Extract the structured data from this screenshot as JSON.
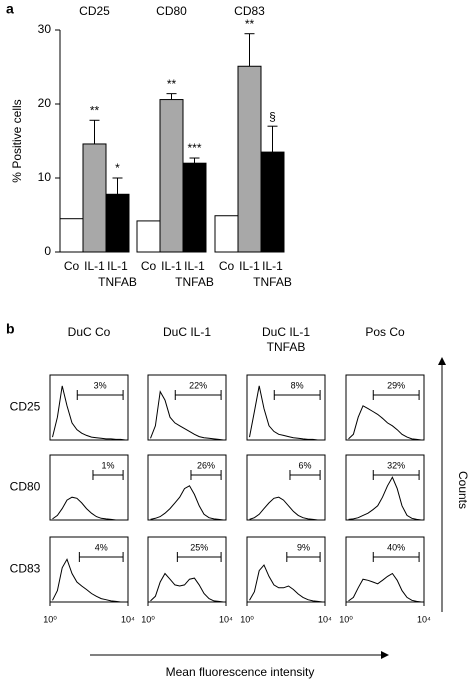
{
  "chart_data": [
    {
      "type": "grouped-bar",
      "panel": "a",
      "ylabel": "% Positive cells",
      "ylim": [
        0,
        30
      ],
      "yticks": [
        0,
        10,
        20,
        30
      ],
      "categories": [
        "Co",
        "IL-1",
        [
          "IL-1",
          "TNFAB"
        ]
      ],
      "colors": [
        "#ffffff",
        "#a8a8a8",
        "#000000"
      ],
      "groups": [
        {
          "name": "CD25",
          "values": [
            4.5,
            14.6,
            7.8
          ],
          "errors": [
            null,
            3.2,
            2.2
          ],
          "annotations": [
            null,
            "**",
            "*"
          ]
        },
        {
          "name": "CD80",
          "values": [
            4.2,
            20.6,
            12.0
          ],
          "errors": [
            null,
            0.8,
            0.7
          ],
          "annotations": [
            null,
            "**",
            "***"
          ]
        },
        {
          "name": "CD83",
          "values": [
            4.9,
            25.1,
            13.5
          ],
          "errors": [
            null,
            4.4,
            3.5
          ],
          "annotations": [
            null,
            "**",
            "§"
          ]
        }
      ]
    },
    {
      "type": "flow-histogram-grid",
      "panel": "b",
      "xlabel": "Mean fluorescence intensity",
      "ylabel": "Counts",
      "xscale": "log",
      "xlim": [
        1,
        10000
      ],
      "ylim": [
        0,
        100
      ],
      "xticks": [
        {
          "value": 1,
          "label": "10⁰"
        },
        {
          "value": 10000,
          "label": "10⁴"
        }
      ],
      "rows": [
        "CD25",
        "CD80",
        "CD83"
      ],
      "columns": [
        "DuC Co",
        "DuC IL-1",
        [
          "DuC IL-1",
          "TNFAB"
        ],
        "Pos Co"
      ],
      "bins": [
        1,
        1.8,
        3.2,
        5.6,
        10,
        18,
        32,
        56,
        100,
        180,
        320,
        560,
        1000,
        1800,
        3200,
        5600,
        10000
      ],
      "cells": [
        [
          {
            "counts": [
              5,
              40,
              95,
              60,
              30,
              18,
              12,
              8,
              5,
              4,
              3,
              2,
              2,
              1,
              1,
              0
            ],
            "gate": [
              25,
              5600
            ],
            "value": 3,
            "value_label": "3%"
          },
          {
            "counts": [
              3,
              25,
              85,
              70,
              40,
              30,
              25,
              20,
              15,
              10,
              6,
              4,
              3,
              2,
              1,
              0
            ],
            "gate": [
              25,
              5600
            ],
            "value": 22,
            "value_label": "22%"
          },
          {
            "counts": [
              5,
              50,
              95,
              55,
              25,
              15,
              10,
              8,
              6,
              4,
              3,
              2,
              1,
              1,
              0,
              0
            ],
            "gate": [
              25,
              5600
            ],
            "value": 8,
            "value_label": "8%"
          },
          {
            "counts": [
              2,
              10,
              40,
              60,
              55,
              50,
              45,
              38,
              30,
              25,
              18,
              10,
              5,
              2,
              1,
              0
            ],
            "gate": [
              25,
              5600
            ],
            "value": 29,
            "value_label": "29%"
          }
        ],
        [
          {
            "counts": [
              2,
              8,
              20,
              35,
              40,
              38,
              30,
              20,
              12,
              6,
              3,
              2,
              1,
              0,
              0,
              0
            ],
            "gate": [
              160,
              5600
            ],
            "value": 1,
            "value_label": "1%"
          },
          {
            "counts": [
              1,
              3,
              6,
              12,
              20,
              30,
              40,
              55,
              60,
              45,
              25,
              10,
              4,
              2,
              1,
              0
            ],
            "gate": [
              160,
              5600
            ],
            "value": 26,
            "value_label": "26%"
          },
          {
            "counts": [
              1,
              4,
              10,
              20,
              30,
              38,
              40,
              35,
              25,
              15,
              8,
              4,
              2,
              1,
              0,
              0
            ],
            "gate": [
              160,
              5600
            ],
            "value": 6,
            "value_label": "6%"
          },
          {
            "counts": [
              1,
              2,
              4,
              8,
              12,
              18,
              25,
              40,
              60,
              75,
              55,
              25,
              8,
              3,
              1,
              0
            ],
            "gate": [
              25,
              5600
            ],
            "value": 32,
            "value_label": "32%"
          }
        ],
        [
          {
            "counts": [
              3,
              20,
              60,
              75,
              50,
              35,
              28,
              22,
              15,
              10,
              6,
              4,
              2,
              1,
              0,
              0
            ],
            "gate": [
              32,
              5600
            ],
            "value": 4,
            "value_label": "4%"
          },
          {
            "counts": [
              2,
              10,
              35,
              50,
              40,
              30,
              28,
              30,
              40,
              42,
              30,
              15,
              6,
              2,
              1,
              0
            ],
            "gate": [
              32,
              5600
            ],
            "value": 25,
            "value_label": "25%"
          },
          {
            "counts": [
              3,
              18,
              55,
              65,
              45,
              30,
              25,
              25,
              28,
              22,
              14,
              8,
              4,
              2,
              1,
              0
            ],
            "gate": [
              110,
              5600
            ],
            "value": 9,
            "value_label": "9%"
          },
          {
            "counts": [
              2,
              8,
              25,
              40,
              38,
              35,
              32,
              38,
              45,
              50,
              38,
              20,
              8,
              3,
              1,
              0
            ],
            "gate": [
              25,
              5600
            ],
            "value": 40,
            "value_label": "40%"
          }
        ]
      ]
    }
  ]
}
